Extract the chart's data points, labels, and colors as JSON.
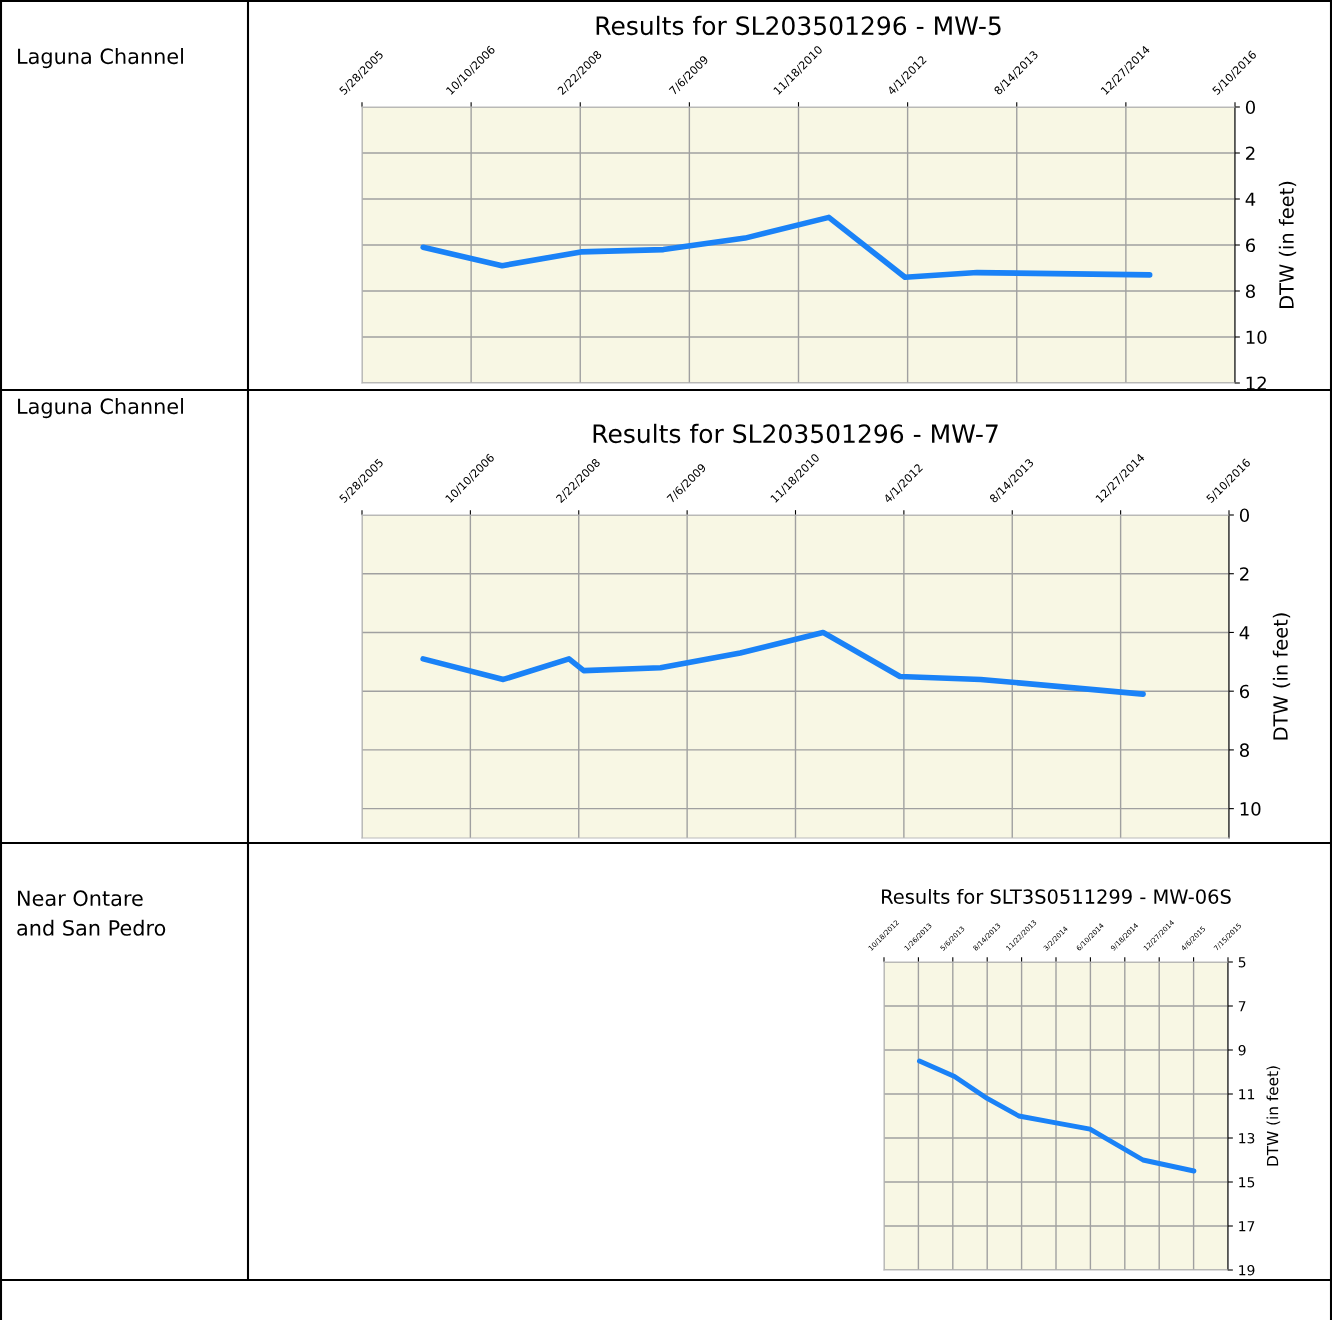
{
  "chart_data": [
    {
      "type": "line",
      "title": "Results for SL203501296 - MW-5",
      "ylabel": "DTW (in feet)",
      "annotations": [
        "Laguna Channel"
      ],
      "series": [
        {
          "color": "#1a82f7",
          "x": [
            "2006-03-04",
            "2007-03-01",
            "2008-02-25",
            "2009-03-09",
            "2010-03-18",
            "2011-04-06",
            "2012-03-20",
            "2013-02-13",
            "2015-04-15"
          ],
          "values": [
            6.1,
            6.9,
            6.3,
            6.2,
            5.7,
            4.8,
            7.4,
            7.2,
            7.3
          ]
        }
      ],
      "xlim": [
        "2005-05-28",
        "2016-05-10"
      ],
      "xticks": [
        {
          "value": "2005-05-28",
          "label": "5/28/2005"
        },
        {
          "value": "2006-10-10",
          "label": "10/10/2006"
        },
        {
          "value": "2008-02-22",
          "label": "2/22/2008"
        },
        {
          "value": "2009-07-06",
          "label": "7/6/2009"
        },
        {
          "value": "2010-11-18",
          "label": "11/18/2010"
        },
        {
          "value": "2012-04-01",
          "label": "4/1/2012"
        },
        {
          "value": "2013-08-14",
          "label": "8/14/2013"
        },
        {
          "value": "2014-12-27",
          "label": "12/27/2014"
        },
        {
          "value": "2016-05-10",
          "label": "5/10/2016"
        }
      ],
      "ylim": [
        12,
        0
      ],
      "yticks": [
        0,
        2,
        4,
        6,
        8,
        10,
        12
      ],
      "grid": true,
      "marker": "none",
      "line_style": "solid"
    },
    {
      "type": "line",
      "title": "Results for SL203501296 - MW-7",
      "ylabel": "DTW (in feet)",
      "annotations": [
        "Laguna Channel"
      ],
      "series": [
        {
          "color": "#1a82f7",
          "x": [
            "2006-03-06",
            "2007-03-11",
            "2008-01-08",
            "2008-03-16",
            "2009-03-05",
            "2010-03-08",
            "2011-03-25",
            "2012-03-14",
            "2013-03-21",
            "2015-04-10"
          ],
          "values": [
            4.9,
            5.6,
            4.9,
            5.3,
            5.2,
            4.7,
            4.0,
            5.5,
            5.6,
            6.1
          ]
        }
      ],
      "xlim": [
        "2005-05-28",
        "2016-05-10"
      ],
      "xticks": [
        {
          "value": "2005-05-28",
          "label": "5/28/2005"
        },
        {
          "value": "2006-10-10",
          "label": "10/10/2006"
        },
        {
          "value": "2008-02-22",
          "label": "2/22/2008"
        },
        {
          "value": "2009-07-06",
          "label": "7/6/2009"
        },
        {
          "value": "2010-11-18",
          "label": "11/18/2010"
        },
        {
          "value": "2012-04-01",
          "label": "4/1/2012"
        },
        {
          "value": "2013-08-14",
          "label": "8/14/2013"
        },
        {
          "value": "2014-12-27",
          "label": "12/27/2014"
        },
        {
          "value": "2016-05-10",
          "label": "5/10/2016"
        }
      ],
      "ylim": [
        11,
        0
      ],
      "yticks": [
        0,
        2,
        4,
        6,
        8,
        10
      ],
      "grid": true,
      "marker": "none",
      "line_style": "solid"
    },
    {
      "type": "line",
      "title": "Results for SLT3S0511299 - MW-06S",
      "ylabel": "DTW (in feet)",
      "annotations": [
        "Near Ontare\nand San Pedro"
      ],
      "series": [
        {
          "color": "#1a82f7",
          "x": [
            "2013-01-29",
            "2013-05-11",
            "2013-08-14",
            "2013-11-14",
            "2014-02-26",
            "2014-06-09",
            "2014-11-10",
            "2015-04-07"
          ],
          "values": [
            9.5,
            10.2,
            11.2,
            12.0,
            12.3,
            12.6,
            14.0,
            14.5
          ]
        }
      ],
      "xlim": [
        "2012-10-18",
        "2015-07-15"
      ],
      "xticks": [
        {
          "value": "2012-10-18",
          "label": "10/18/2012"
        },
        {
          "value": "2013-01-26",
          "label": "1/26/2013"
        },
        {
          "value": "2013-05-06",
          "label": "5/6/2013"
        },
        {
          "value": "2013-08-14",
          "label": "8/14/2013"
        },
        {
          "value": "2013-11-22",
          "label": "11/22/2013"
        },
        {
          "value": "2014-03-02",
          "label": "3/2/2014"
        },
        {
          "value": "2014-06-10",
          "label": "6/10/2014"
        },
        {
          "value": "2014-09-18",
          "label": "9/18/2014"
        },
        {
          "value": "2014-12-27",
          "label": "12/27/2014"
        },
        {
          "value": "2015-04-06",
          "label": "4/6/2015"
        },
        {
          "value": "2015-07-15",
          "label": "7/15/2015"
        }
      ],
      "ylim": [
        19,
        5
      ],
      "yticks": [
        5,
        7,
        9,
        11,
        13,
        15,
        17,
        19
      ],
      "grid": true,
      "marker": "none",
      "line_style": "solid"
    }
  ]
}
